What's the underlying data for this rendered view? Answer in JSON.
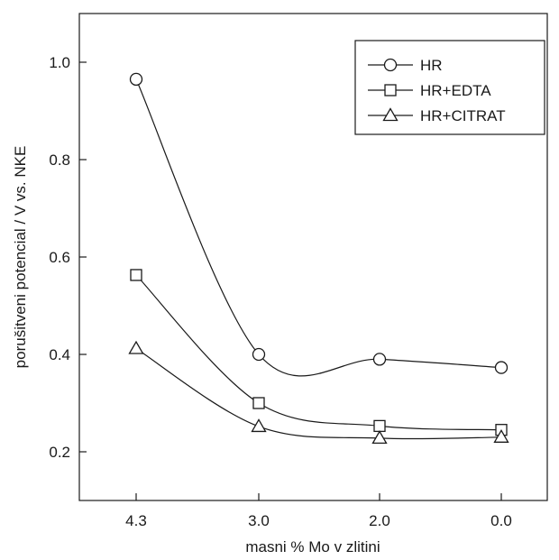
{
  "chart_data": {
    "type": "line",
    "title": "",
    "xlabel": "masni % Mo v zlitini",
    "ylabel": "porušitveni potencial / V vs. NKE",
    "categories": [
      "4.3",
      "3.0",
      "2.0",
      "0.0"
    ],
    "ylim": [
      0.1,
      1.1
    ],
    "yticks": [
      "0.2",
      "0.4",
      "0.6",
      "0.8",
      "1.0"
    ],
    "grid": false,
    "legend_position": "top-right",
    "series": [
      {
        "name": "HR",
        "marker": "circle",
        "values": [
          0.965,
          0.4,
          0.39,
          0.373
        ]
      },
      {
        "name": "HR+EDTA",
        "marker": "square",
        "values": [
          0.563,
          0.3,
          0.253,
          0.245
        ]
      },
      {
        "name": "HR+CITRAT",
        "marker": "triangle",
        "values": [
          0.412,
          0.252,
          0.228,
          0.23
        ]
      }
    ],
    "colors": {
      "line": "#1a1a1a",
      "background": "#ffffff"
    }
  }
}
